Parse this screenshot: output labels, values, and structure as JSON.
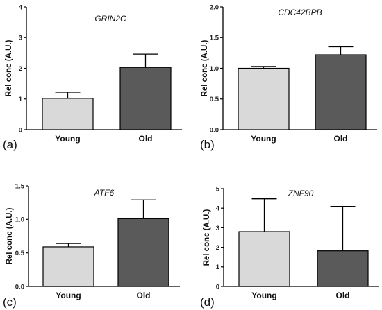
{
  "chart_data": [
    {
      "type": "bar",
      "panel_label": "(a)",
      "title": "GRIN2C",
      "ylabel": "Rel conc (A.U.)",
      "categories": [
        "Young",
        "Old"
      ],
      "values": [
        1.02,
        2.03
      ],
      "errors": [
        0.2,
        0.43
      ],
      "colors": [
        "#d9d9d9",
        "#5a5a5a"
      ],
      "ylim": [
        0,
        4
      ],
      "yticks": [
        0,
        1,
        2,
        3,
        4
      ],
      "ytick_labels": [
        "0",
        "1",
        "2",
        "3",
        "4"
      ]
    },
    {
      "type": "bar",
      "panel_label": "(b)",
      "title": "CDC42BPB",
      "ylabel": "Rel conc (A.U.)",
      "categories": [
        "Young",
        "Old"
      ],
      "values": [
        1.0,
        1.22
      ],
      "errors": [
        0.03,
        0.13
      ],
      "colors": [
        "#d9d9d9",
        "#5a5a5a"
      ],
      "ylim": [
        0,
        2.0
      ],
      "yticks": [
        0,
        0.5,
        1.0,
        1.5,
        2.0
      ],
      "ytick_labels": [
        "0.0",
        "0.5",
        "1.0",
        "1.5",
        "2.0"
      ]
    },
    {
      "type": "bar",
      "panel_label": "(c)",
      "title": "ATF6",
      "ylabel": "Rel conc (A.U.)",
      "categories": [
        "Young",
        "Old"
      ],
      "values": [
        0.59,
        1.01
      ],
      "errors": [
        0.05,
        0.28
      ],
      "colors": [
        "#d9d9d9",
        "#5a5a5a"
      ],
      "ylim": [
        0,
        1.5
      ],
      "yticks": [
        0,
        0.5,
        1.0,
        1.5
      ],
      "ytick_labels": [
        "0.0",
        "0.5",
        "1.0",
        "1.5"
      ]
    },
    {
      "type": "bar",
      "panel_label": "(d)",
      "title": "ZNF90",
      "ylabel": "Rel conc (A.U.)",
      "categories": [
        "Young",
        "Old"
      ],
      "values": [
        2.8,
        1.82
      ],
      "errors": [
        1.68,
        2.27
      ],
      "colors": [
        "#d9d9d9",
        "#5a5a5a"
      ],
      "ylim": [
        0,
        5
      ],
      "yticks": [
        0,
        1,
        2,
        3,
        4,
        5
      ],
      "ytick_labels": [
        "0",
        "1",
        "2",
        "3",
        "4",
        "5"
      ]
    }
  ]
}
